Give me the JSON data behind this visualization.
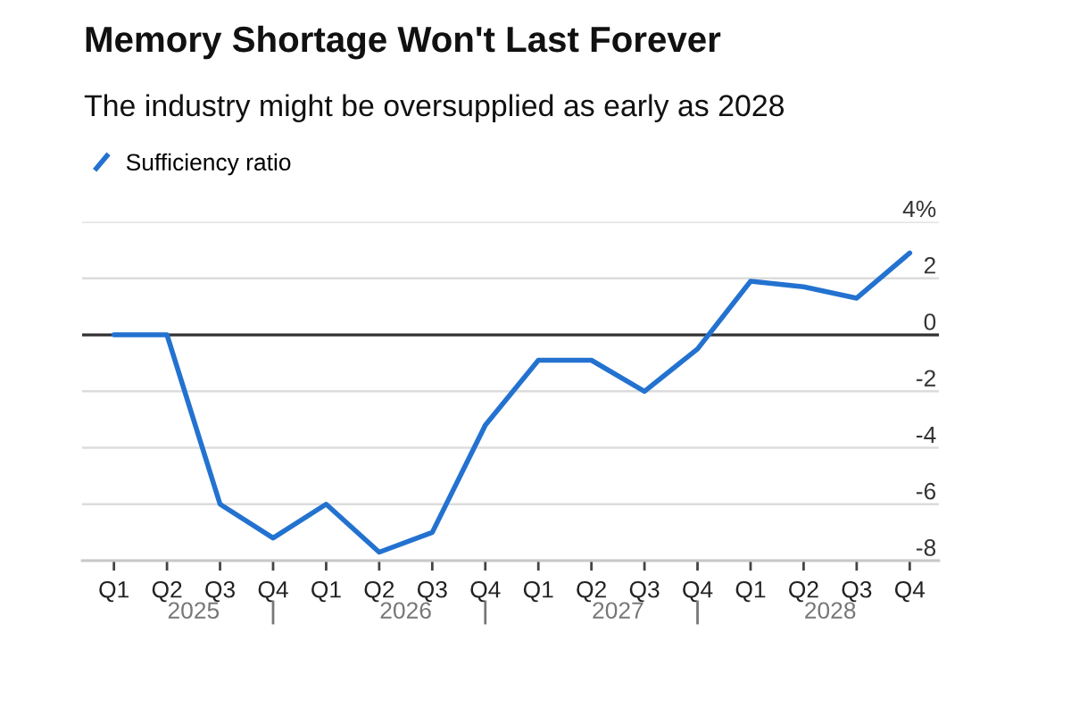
{
  "chart_data": {
    "type": "line",
    "title": "Memory Shortage Won't Last Forever",
    "subtitle": "The industry might be oversupplied as early as 2028",
    "categories": [
      "Q1",
      "Q2",
      "Q3",
      "Q4",
      "Q1",
      "Q2",
      "Q3",
      "Q4",
      "Q1",
      "Q2",
      "Q3",
      "Q4",
      "Q1",
      "Q2",
      "Q3",
      "Q4"
    ],
    "series": [
      {
        "name": "Sufficiency ratio",
        "color": "#2372d0",
        "values": [
          0,
          0,
          -6.0,
          -7.2,
          -6.0,
          -7.7,
          -7.0,
          -3.2,
          -0.9,
          -0.9,
          -2.0,
          -0.5,
          1.9,
          1.7,
          1.3,
          2.9
        ]
      }
    ],
    "ylim": [
      -8,
      4
    ],
    "yticks": [
      {
        "value": 4,
        "label": "4%"
      },
      2,
      0,
      -2,
      -4,
      -6,
      -8
    ],
    "grid": "y",
    "legend": "top left",
    "ref_lines": [
      {
        "axis": "y",
        "value": 0,
        "color": "#333333"
      }
    ],
    "annotations": [
      "2025",
      "2026",
      "2027",
      "2028"
    ]
  }
}
